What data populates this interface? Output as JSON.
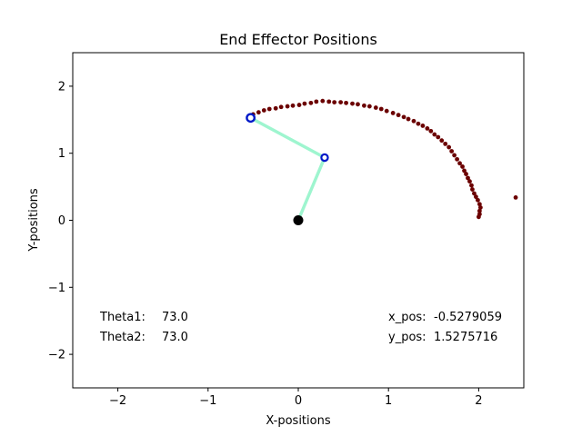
{
  "chart_data": {
    "type": "scatter",
    "title": "End Effector Positions",
    "xlabel": "X-positions",
    "ylabel": "Y-positions",
    "xlim": [
      -2.5,
      2.5
    ],
    "ylim": [
      -2.5,
      2.5
    ],
    "xticks": [
      -2,
      -1,
      0,
      1,
      2
    ],
    "yticks": [
      -2,
      -1,
      0,
      1,
      2
    ],
    "xtick_labels": [
      "−2",
      "−1",
      "0",
      "1",
      "2"
    ],
    "ytick_labels": [
      "−2",
      "−1",
      "0",
      "1",
      "2"
    ],
    "grid": false,
    "colors": {
      "trace": "#6b0000",
      "arm": "#9ef5cf",
      "joint": "#0019c8",
      "base": "#000000"
    },
    "arm": {
      "base": [
        0,
        0
      ],
      "elbow": [
        0.292,
        0.935
      ],
      "end_effector": [
        -0.528,
        1.528
      ]
    },
    "trace": [
      [
        2.0,
        0.05
      ],
      [
        2.01,
        0.09
      ],
      [
        2.01,
        0.14
      ],
      [
        2.02,
        0.19
      ],
      [
        2.01,
        0.24
      ],
      [
        1.99,
        0.3
      ],
      [
        1.97,
        0.35
      ],
      [
        1.95,
        0.4
      ],
      [
        1.93,
        0.46
      ],
      [
        1.92,
        0.52
      ],
      [
        1.9,
        0.58
      ],
      [
        1.88,
        0.63
      ],
      [
        1.86,
        0.69
      ],
      [
        1.84,
        0.74
      ],
      [
        1.82,
        0.8
      ],
      [
        1.79,
        0.85
      ],
      [
        1.76,
        0.91
      ],
      [
        1.73,
        0.97
      ],
      [
        1.7,
        1.03
      ],
      [
        1.67,
        1.09
      ],
      [
        1.63,
        1.14
      ],
      [
        1.59,
        1.19
      ],
      [
        1.55,
        1.24
      ],
      [
        1.51,
        1.28
      ],
      [
        1.47,
        1.33
      ],
      [
        1.43,
        1.37
      ],
      [
        1.38,
        1.41
      ],
      [
        1.33,
        1.44
      ],
      [
        1.28,
        1.48
      ],
      [
        1.22,
        1.51
      ],
      [
        1.17,
        1.54
      ],
      [
        1.11,
        1.57
      ],
      [
        1.05,
        1.6
      ],
      [
        0.98,
        1.63
      ],
      [
        0.92,
        1.66
      ],
      [
        0.86,
        1.68
      ],
      [
        0.79,
        1.7
      ],
      [
        0.73,
        1.71
      ],
      [
        0.66,
        1.73
      ],
      [
        0.6,
        1.74
      ],
      [
        0.53,
        1.75
      ],
      [
        0.47,
        1.76
      ],
      [
        0.4,
        1.76
      ],
      [
        0.34,
        1.77
      ],
      [
        0.27,
        1.78
      ],
      [
        0.2,
        1.77
      ],
      [
        0.14,
        1.75
      ],
      [
        0.07,
        1.74
      ],
      [
        0.01,
        1.72
      ],
      [
        -0.06,
        1.71
      ],
      [
        -0.12,
        1.7
      ],
      [
        -0.19,
        1.69
      ],
      [
        -0.25,
        1.67
      ],
      [
        -0.32,
        1.66
      ],
      [
        -0.38,
        1.64
      ],
      [
        -0.44,
        1.61
      ],
      [
        -0.5,
        1.58
      ],
      [
        -0.53,
        1.53
      ]
    ],
    "outlier": [
      2.41,
      0.34
    ]
  },
  "annotations": {
    "theta1_label": "Theta1:",
    "theta1_value": "73.0",
    "theta2_label": "Theta2:",
    "theta2_value": "73.0",
    "xpos_label": "x_pos:",
    "xpos_value": "-0.5279059",
    "ypos_label": "y_pos:",
    "ypos_value": "1.5275716"
  }
}
